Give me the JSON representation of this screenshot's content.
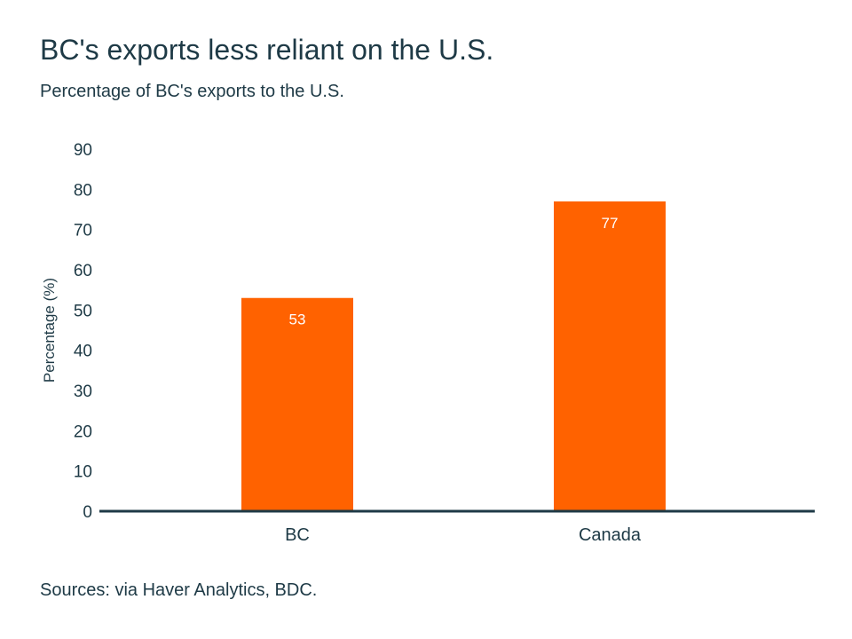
{
  "chart_data": {
    "type": "bar",
    "title": "BC's exports less reliant on the U.S.",
    "subtitle": "Percentage of BC's exports to the U.S.",
    "categories": [
      "BC",
      "Canada"
    ],
    "values": [
      53,
      77
    ],
    "data_labels": [
      "53",
      "77"
    ],
    "xlabel": "",
    "ylabel": "Percentage (%)",
    "ylim": [
      0,
      90
    ],
    "yticks": [
      0,
      10,
      20,
      30,
      40,
      50,
      60,
      70,
      80,
      90
    ],
    "grid": false,
    "source": "Sources: via Haver Analytics, BDC.",
    "bar_color": "#ff6200",
    "axis_color": "#1e3a46"
  }
}
